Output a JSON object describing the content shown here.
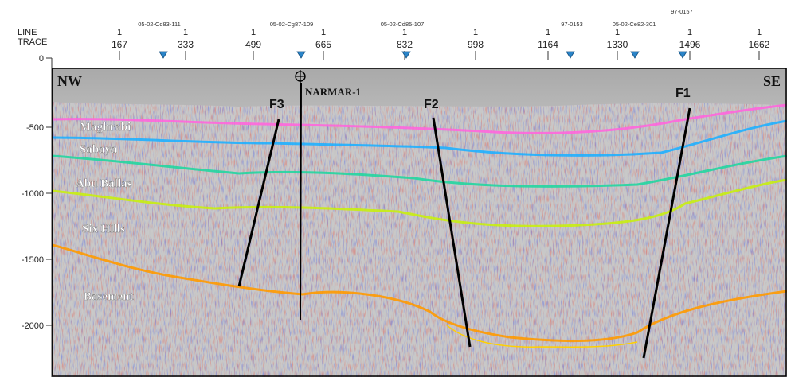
{
  "header": {
    "line_label": "LINE",
    "trace_label": "TRACE",
    "line_ticks": [
      "1",
      "1",
      "1",
      "1",
      "1",
      "1",
      "1",
      "1",
      "1",
      "1"
    ],
    "trace_ticks": [
      "167",
      "333",
      "499",
      "665",
      "832",
      "998",
      "1164",
      "1330",
      "1496",
      "1662"
    ],
    "tie_lines": [
      "05-02-Cd83-111",
      "05-02-Cg87-109",
      "05-02-Cd85-107",
      "97-0153",
      "05-02-Ce82-301",
      "97-0157"
    ]
  },
  "depth_axis": {
    "ticks": [
      "0",
      "-500",
      "-1000",
      "-1500",
      "-2000"
    ]
  },
  "section": {
    "nw_label": "NW",
    "se_label": "SE",
    "well": "NARMAR-1",
    "faults": [
      "F3",
      "F2",
      "F1"
    ],
    "horizons": [
      {
        "name": "Maghrabi",
        "color": "#ff66dd"
      },
      {
        "name": "Sabaya",
        "color": "#1fb0ff"
      },
      {
        "name": "Abu Ballas",
        "color": "#22d6a0"
      },
      {
        "name": "Six Hills",
        "color": "#c8ee10"
      },
      {
        "name": "Basement",
        "color": "#ff9a00"
      }
    ]
  }
}
